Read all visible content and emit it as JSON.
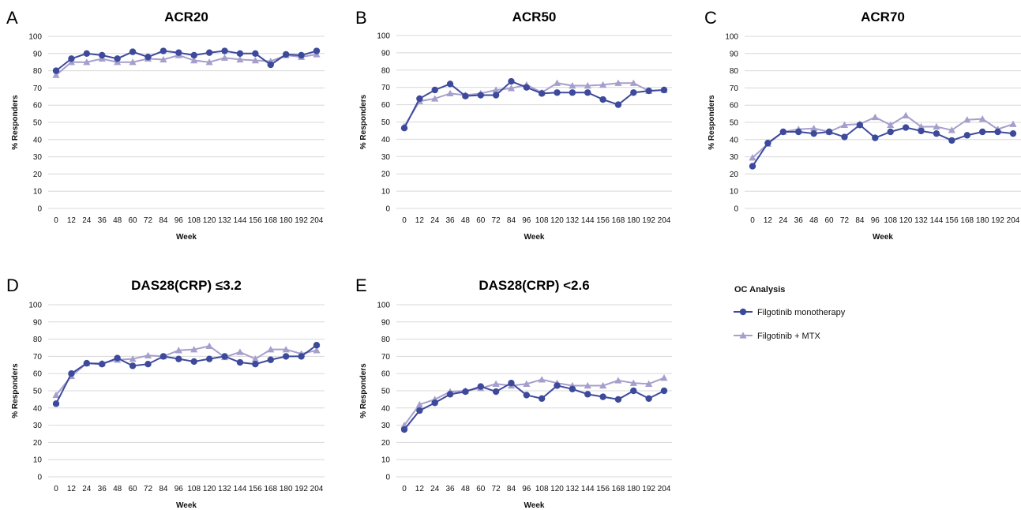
{
  "legend": {
    "title": "OC Analysis",
    "items": [
      {
        "label": "Filgotinib monotherapy",
        "color": "#3d4a9c",
        "marker": "circle"
      },
      {
        "label": "Filgotinib + MTX",
        "color": "#a59fcc",
        "marker": "triangle"
      }
    ]
  },
  "colors": {
    "mono": "#3d4a9c",
    "mtx": "#a59fcc",
    "grid": "#d8d8d8"
  },
  "chart_data": [
    {
      "type": "line",
      "panel": "A",
      "title": "ACR20",
      "xlabel": "Week",
      "ylabel": "% Responders",
      "x": [
        0,
        12,
        24,
        36,
        48,
        60,
        72,
        84,
        96,
        108,
        120,
        132,
        144,
        156,
        168,
        180,
        192,
        204
      ],
      "ylim": [
        0,
        100
      ],
      "yticks": [
        0,
        10,
        20,
        30,
        40,
        50,
        60,
        70,
        80,
        90,
        100
      ],
      "series": [
        {
          "name": "Filgotinib monotherapy",
          "values": [
            80,
            87,
            90,
            89,
            87,
            91,
            88,
            91.5,
            90.5,
            89,
            90.5,
            91.5,
            90,
            90,
            83.5,
            89.5,
            89,
            91.5
          ]
        },
        {
          "name": "Filgotinib + MTX",
          "values": [
            77.5,
            85,
            85,
            87,
            85,
            85,
            87,
            86.5,
            89,
            86,
            85,
            87.5,
            86.5,
            86,
            85.5,
            89,
            88,
            89.5
          ]
        }
      ]
    },
    {
      "type": "line",
      "panel": "B",
      "title": "ACR50",
      "xlabel": "Week",
      "ylabel": "% Responders",
      "x": [
        0,
        12,
        24,
        36,
        48,
        60,
        72,
        84,
        96,
        108,
        120,
        132,
        144,
        156,
        168,
        180,
        192,
        204
      ],
      "ylim": [
        0,
        100
      ],
      "yticks": [
        0,
        10,
        20,
        30,
        40,
        50,
        60,
        70,
        80,
        90,
        100
      ],
      "series": [
        {
          "name": "Filgotinib monotherapy",
          "values": [
            46.5,
            63.5,
            68.5,
            72,
            65,
            65.5,
            65.5,
            73.5,
            70,
            66.5,
            67,
            67,
            67,
            63,
            60,
            67,
            68,
            68.5
          ]
        },
        {
          "name": "Filgotinib + MTX",
          "values": [
            47.5,
            62,
            63.5,
            66.5,
            65.5,
            66.5,
            68.5,
            69.5,
            71.5,
            67,
            72.5,
            71,
            71,
            71.5,
            72.5,
            72.5,
            68,
            68.5
          ]
        }
      ]
    },
    {
      "type": "line",
      "panel": "C",
      "title": "ACR70",
      "xlabel": "Week",
      "ylabel": "% Responders",
      "x": [
        0,
        12,
        24,
        36,
        48,
        60,
        72,
        84,
        96,
        108,
        120,
        132,
        144,
        156,
        168,
        180,
        192,
        204
      ],
      "ylim": [
        0,
        100
      ],
      "yticks": [
        0,
        10,
        20,
        30,
        40,
        50,
        60,
        70,
        80,
        90,
        100
      ],
      "series": [
        {
          "name": "Filgotinib monotherapy",
          "values": [
            24.5,
            38,
            44.5,
            44.5,
            43.5,
            44.5,
            41.5,
            48.5,
            41,
            44.5,
            47,
            45,
            43.5,
            39.5,
            42.5,
            44.5,
            44.5,
            43.5
          ]
        },
        {
          "name": "Filgotinib + MTX",
          "values": [
            29.5,
            37.5,
            44.5,
            46,
            46.5,
            44.5,
            48.5,
            49,
            53,
            48.5,
            54,
            47.5,
            47.5,
            45.5,
            51.5,
            52,
            46,
            49
          ]
        }
      ]
    },
    {
      "type": "line",
      "panel": "D",
      "title": "DAS28(CRP) ≤3.2",
      "xlabel": "Week",
      "ylabel": "% Responders",
      "x": [
        0,
        12,
        24,
        36,
        48,
        60,
        72,
        84,
        96,
        108,
        120,
        132,
        144,
        156,
        168,
        180,
        192,
        204
      ],
      "ylim": [
        0,
        100
      ],
      "yticks": [
        0,
        10,
        20,
        30,
        40,
        50,
        60,
        70,
        80,
        90,
        100
      ],
      "series": [
        {
          "name": "Filgotinib monotherapy",
          "values": [
            42.5,
            60,
            66,
            65.5,
            69,
            64.5,
            65.5,
            70,
            68.5,
            67,
            68.5,
            70,
            66.5,
            65.5,
            68,
            70,
            70,
            76.5
          ]
        },
        {
          "name": "Filgotinib + MTX",
          "values": [
            47.5,
            58.5,
            66,
            66,
            68,
            68.5,
            70.5,
            70,
            73.5,
            74,
            76,
            69.5,
            72.5,
            68.5,
            74,
            74,
            71.5,
            73.5
          ]
        }
      ]
    },
    {
      "type": "line",
      "panel": "E",
      "title": "DAS28(CRP) <2.6",
      "xlabel": "Week",
      "ylabel": "% Responders",
      "x": [
        0,
        12,
        24,
        36,
        48,
        60,
        72,
        84,
        96,
        108,
        120,
        132,
        144,
        156,
        168,
        180,
        192,
        204
      ],
      "ylim": [
        0,
        100
      ],
      "yticks": [
        0,
        10,
        20,
        30,
        40,
        50,
        60,
        70,
        80,
        90,
        100
      ],
      "series": [
        {
          "name": "Filgotinib monotherapy",
          "values": [
            27.5,
            38.5,
            43,
            48,
            49.5,
            52.5,
            49.5,
            54.5,
            47.5,
            45.5,
            53,
            51,
            48,
            46.5,
            45,
            50,
            45.5,
            50
          ]
        },
        {
          "name": "Filgotinib + MTX",
          "values": [
            30,
            42,
            45,
            49.5,
            50,
            51.5,
            54,
            53,
            54,
            56.5,
            54.5,
            53,
            53,
            53,
            56,
            54.5,
            54,
            57.5
          ]
        }
      ]
    }
  ]
}
